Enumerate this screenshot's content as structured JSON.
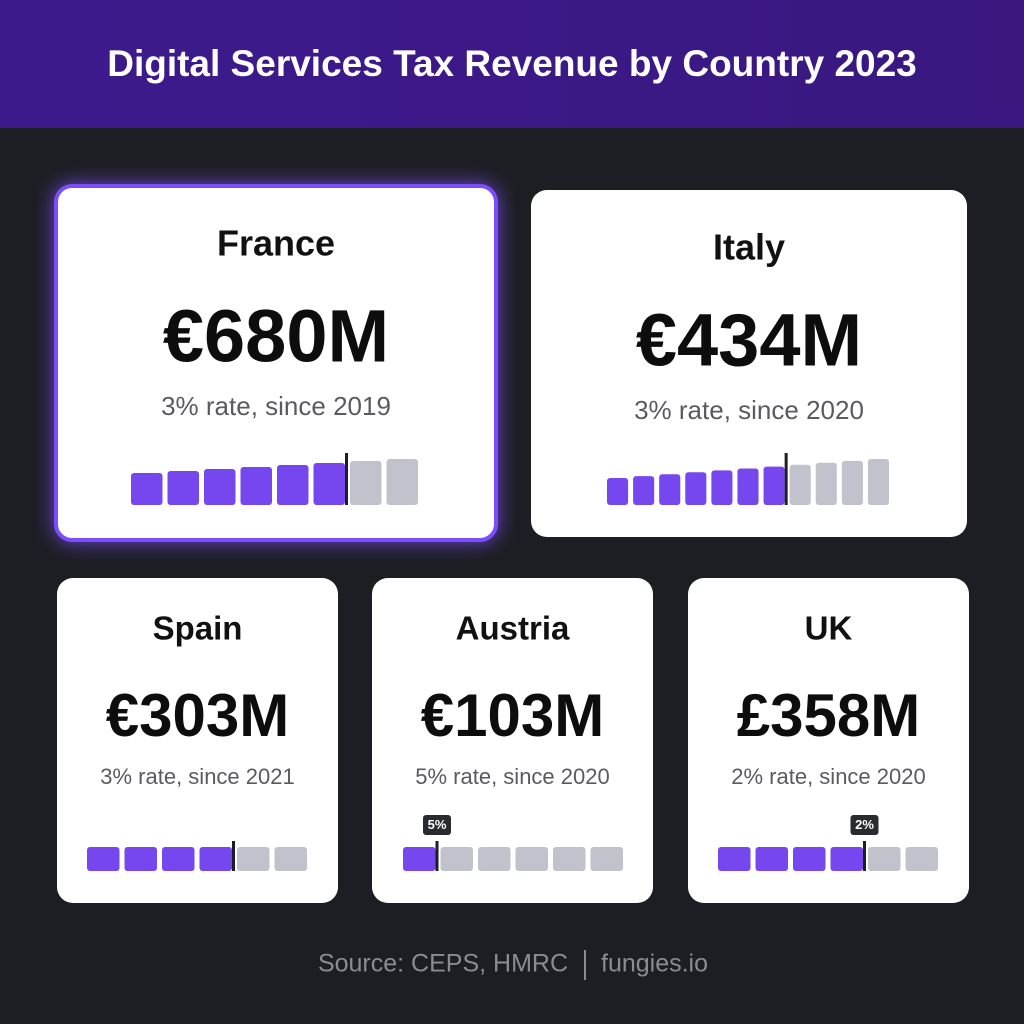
{
  "header": {
    "title": "Digital Services Tax Revenue by Country 2023"
  },
  "cards": [
    {
      "country": "France",
      "amount": "€680M",
      "note": "3% rate, since 2019"
    },
    {
      "country": "Italy",
      "amount": "€434M",
      "note": "3% rate, since 2020"
    },
    {
      "country": "Spain",
      "amount": "€303M",
      "note": "3% rate, since 2021"
    },
    {
      "country": "Austria",
      "amount": "€103M",
      "note": "5% rate, since 2020",
      "badge": "5%"
    },
    {
      "country": "UK",
      "amount": "£358M",
      "note": "2% rate, since 2020",
      "badge": "2%"
    }
  ],
  "footer": {
    "source": "Source: CEPS, HMRC",
    "brand": "fungies.io"
  }
}
